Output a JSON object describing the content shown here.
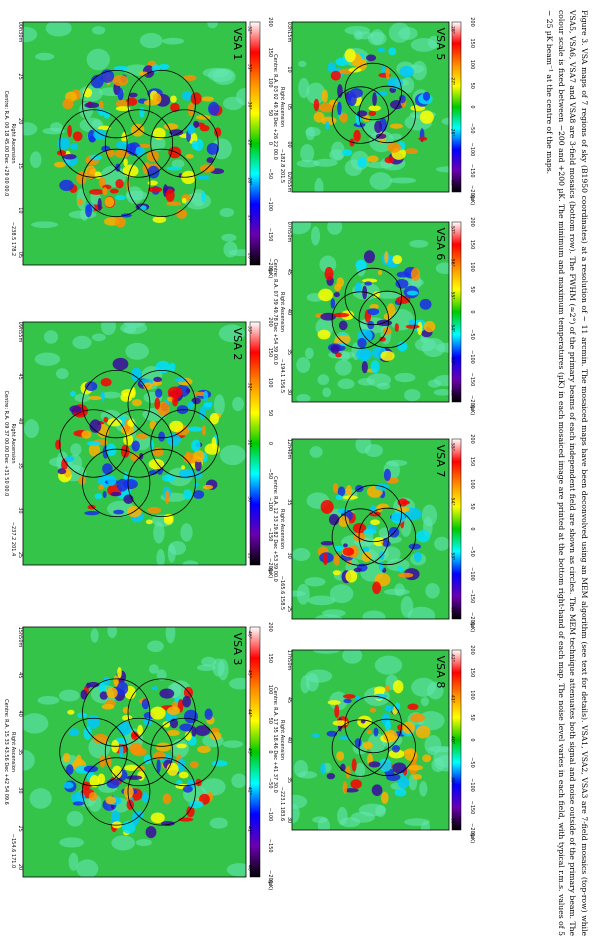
{
  "caption": "Figure 3. VSA maps of 7 regions of sky (B1950 coordinates) at a resolution of ~ 11 arcmin. The mosaiced maps have been deconvolved using an MEM algorithm (see text for details). VSA1, VSA2, VSA3 are 7-field mosaics (top-row) while VSA5, VSA6, VSA7 and VSA8 are 3-field mosaics (bottom row). The FWHM (≈2°) of the primary beams of each independent field are shown as circles. The MEM technique attenuates both signal and noise outside of the primary beam. The colour scale is fixed between −200 and +200 µK. The minimum and maximum temperatures (µK) in each mosaiced image are printed at the bottom right-hand of each map. The noise level varies in each field, with typical r.m.s. values of 5 − 25 µK beam⁻¹ at the centre of the maps.",
  "axes": {
    "ra_label": "Right Ascension",
    "dec_label": "Declination",
    "unit": "(µK)"
  },
  "colorbar_ticks": [
    "200",
    "150",
    "100",
    "50",
    "0",
    "−50",
    "−100",
    "−150",
    "−200"
  ],
  "colorbar_colors": [
    "#ffffff",
    "#ff0000",
    "#ff8c00",
    "#ffff00",
    "#00c800",
    "#00ffff",
    "#0000ff",
    "#6a00b0",
    "#000000"
  ],
  "maps": [
    {
      "name": "VSA 1",
      "minmax": "−238.5   178.2",
      "centre": "Centre:  R.A. 00 18 45.00     Dec  +29 00 00.0",
      "ra_ticks": [
        "00h30m",
        "25",
        "20",
        "15",
        "10",
        "05"
      ],
      "dec_ticks": [
        "32°",
        "31°",
        "30°",
        "29°",
        "28°",
        "27°",
        "26°"
      ],
      "n": 7
    },
    {
      "name": "VSA 2",
      "minmax": "−237.2   201.4",
      "centre": "Centre:  R.A. 09 37 00.00     Dec  +31 50 00.0",
      "ra_ticks": [
        "09h55m",
        "45",
        "40",
        "35",
        "30",
        "25"
      ],
      "dec_ticks": [
        "33°",
        "32°",
        "31°",
        "30°",
        "29°"
      ],
      "n": 7
    },
    {
      "name": "VSA 3",
      "minmax": "−154.6   171.0",
      "centre": "Centre:  R.A. 15 33 43.56     Dec  +42 54 09.6",
      "ra_ticks": [
        "15h50m",
        "45",
        "40",
        "35",
        "30",
        "25",
        "20"
      ],
      "dec_ticks": [
        "46°",
        "45°",
        "44°",
        "43°",
        "42°",
        "41°",
        "40°"
      ],
      "n": 7
    },
    {
      "name": "VSA 5",
      "minmax": "−182.8   201.5",
      "centre": "Centre:  R.A. 03 02 49.78     Dec  +26 22 00.0",
      "ra_ticks": [
        "03h15m",
        "10",
        "05",
        "00",
        "02h55m"
      ],
      "dec_ticks": [
        "28°",
        "27°",
        "26°",
        "25°"
      ],
      "n": 3
    },
    {
      "name": "VSA 6",
      "minmax": "−194.1   156.5",
      "centre": "Centre:  R.A. 07 39 49.78     Dec  +54 39 00.0",
      "ra_ticks": [
        "07h50m",
        "45",
        "40",
        "35",
        "30"
      ],
      "dec_ticks": [
        "57°",
        "56°",
        "55°",
        "54°",
        "53°",
        "52°"
      ],
      "n": 3
    },
    {
      "name": "VSA 7",
      "minmax": "−165.6   158.5",
      "centre": "Centre:  R.A. 12 33 29.82     Dec  +53 39 00.0",
      "ra_ticks": [
        "12h40m",
        "35",
        "30",
        "25"
      ],
      "dec_ticks": [
        "55°",
        "54°",
        "53°",
        "52°"
      ],
      "n": 3
    },
    {
      "name": "VSA 8",
      "minmax": "−223.1   183.6",
      "centre": "Centre:  R.A. 17 35 18.46     Dec  +41 37 30.0",
      "ra_ticks": [
        "17h50m",
        "45",
        "40",
        "35",
        "30"
      ],
      "dec_ticks": [
        "42°",
        "41°",
        "40°",
        "39°",
        "38°"
      ],
      "n": 3
    }
  ]
}
